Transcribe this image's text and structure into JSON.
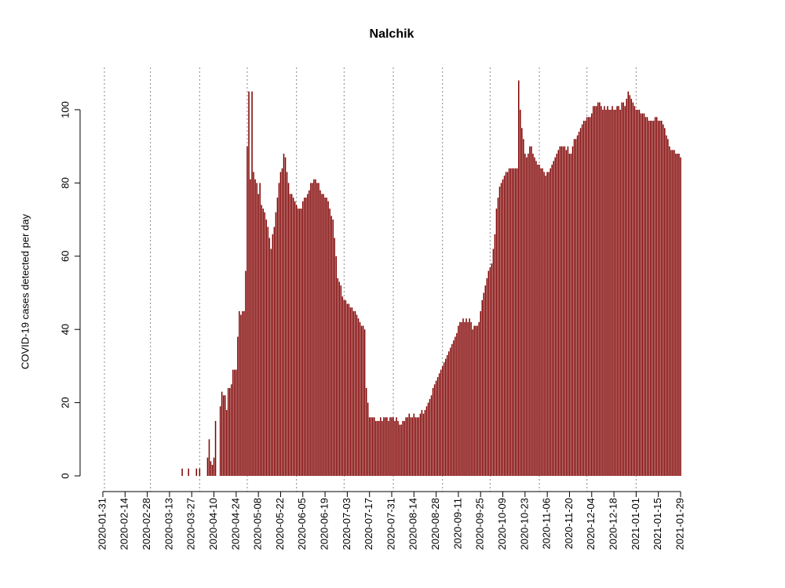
{
  "chart_data": {
    "type": "bar",
    "title": "Nalchik",
    "y_label": "COVID-19 cases detected per day",
    "color": "#800000",
    "x": [
      "2020-01-31",
      "2020-02-01",
      "2020-02-02",
      "2020-02-03",
      "2020-02-04",
      "2020-02-05",
      "2020-02-06",
      "2020-02-07",
      "2020-02-08",
      "2020-02-09",
      "2020-02-10",
      "2020-02-11",
      "2020-02-12",
      "2020-02-13",
      "2020-02-14",
      "2020-02-15",
      "2020-02-16",
      "2020-02-17",
      "2020-02-18",
      "2020-02-19",
      "2020-02-20",
      "2020-02-21",
      "2020-02-22",
      "2020-02-23",
      "2020-02-24",
      "2020-02-25",
      "2020-02-26",
      "2020-02-27",
      "2020-02-28",
      "2020-02-29",
      "2020-03-01",
      "2020-03-02",
      "2020-03-03",
      "2020-03-04",
      "2020-03-05",
      "2020-03-06",
      "2020-03-07",
      "2020-03-08",
      "2020-03-09",
      "2020-03-10",
      "2020-03-11",
      "2020-03-12",
      "2020-03-13",
      "2020-03-14",
      "2020-03-15",
      "2020-03-16",
      "2020-03-17",
      "2020-03-18",
      "2020-03-19",
      "2020-03-20",
      "2020-03-21",
      "2020-03-22",
      "2020-03-23",
      "2020-03-24",
      "2020-03-25",
      "2020-03-26",
      "2020-03-27",
      "2020-03-28",
      "2020-03-29",
      "2020-03-30",
      "2020-03-31",
      "2020-04-01",
      "2020-04-02",
      "2020-04-03",
      "2020-04-04",
      "2020-04-05",
      "2020-04-06",
      "2020-04-07",
      "2020-04-08",
      "2020-04-09",
      "2020-04-10",
      "2020-04-11",
      "2020-04-12",
      "2020-04-13",
      "2020-04-14",
      "2020-04-15",
      "2020-04-16",
      "2020-04-17",
      "2020-04-18",
      "2020-04-19",
      "2020-04-20",
      "2020-04-21",
      "2020-04-22",
      "2020-04-23",
      "2020-04-24",
      "2020-04-25",
      "2020-04-26",
      "2020-04-27",
      "2020-04-28",
      "2020-04-29",
      "2020-04-30",
      "2020-05-01",
      "2020-05-02",
      "2020-05-03",
      "2020-05-04",
      "2020-05-05",
      "2020-05-06",
      "2020-05-07",
      "2020-05-08",
      "2020-05-09",
      "2020-05-10",
      "2020-05-11",
      "2020-05-12",
      "2020-05-13",
      "2020-05-14",
      "2020-05-15",
      "2020-05-16",
      "2020-05-17",
      "2020-05-18",
      "2020-05-19",
      "2020-05-20",
      "2020-05-21",
      "2020-05-22",
      "2020-05-23",
      "2020-05-24",
      "2020-05-25",
      "2020-05-26",
      "2020-05-27",
      "2020-05-28",
      "2020-05-29",
      "2020-05-30",
      "2020-05-31",
      "2020-06-01",
      "2020-06-02",
      "2020-06-03",
      "2020-06-04",
      "2020-06-05",
      "2020-06-06",
      "2020-06-07",
      "2020-06-08",
      "2020-06-09",
      "2020-06-10",
      "2020-06-11",
      "2020-06-12",
      "2020-06-13",
      "2020-06-14",
      "2020-06-15",
      "2020-06-16",
      "2020-06-17",
      "2020-06-18",
      "2020-06-19",
      "2020-06-20",
      "2020-06-21",
      "2020-06-22",
      "2020-06-23",
      "2020-06-24",
      "2020-06-25",
      "2020-06-26",
      "2020-06-27",
      "2020-06-28",
      "2020-06-29",
      "2020-06-30",
      "2020-07-01",
      "2020-07-02",
      "2020-07-03",
      "2020-07-04",
      "2020-07-05",
      "2020-07-06",
      "2020-07-07",
      "2020-07-08",
      "2020-07-09",
      "2020-07-10",
      "2020-07-11",
      "2020-07-12",
      "2020-07-13",
      "2020-07-14",
      "2020-07-15",
      "2020-07-16",
      "2020-07-17",
      "2020-07-18",
      "2020-07-19",
      "2020-07-20",
      "2020-07-21",
      "2020-07-22",
      "2020-07-23",
      "2020-07-24",
      "2020-07-25",
      "2020-07-26",
      "2020-07-27",
      "2020-07-28",
      "2020-07-29",
      "2020-07-30",
      "2020-07-31",
      "2020-08-01",
      "2020-08-02",
      "2020-08-03",
      "2020-08-04",
      "2020-08-05",
      "2020-08-06",
      "2020-08-07",
      "2020-08-08",
      "2020-08-09",
      "2020-08-10",
      "2020-08-11",
      "2020-08-12",
      "2020-08-13",
      "2020-08-14",
      "2020-08-15",
      "2020-08-16",
      "2020-08-17",
      "2020-08-18",
      "2020-08-19",
      "2020-08-20",
      "2020-08-21",
      "2020-08-22",
      "2020-08-23",
      "2020-08-24",
      "2020-08-25",
      "2020-08-26",
      "2020-08-27",
      "2020-08-28",
      "2020-08-29",
      "2020-08-30",
      "2020-08-31",
      "2020-09-01",
      "2020-09-02",
      "2020-09-03",
      "2020-09-04",
      "2020-09-05",
      "2020-09-06",
      "2020-09-07",
      "2020-09-08",
      "2020-09-09",
      "2020-09-10",
      "2020-09-11",
      "2020-09-12",
      "2020-09-13",
      "2020-09-14",
      "2020-09-15",
      "2020-09-16",
      "2020-09-17",
      "2020-09-18",
      "2020-09-19",
      "2020-09-20",
      "2020-09-21",
      "2020-09-22",
      "2020-09-23",
      "2020-09-24",
      "2020-09-25",
      "2020-09-26",
      "2020-09-27",
      "2020-09-28",
      "2020-09-29",
      "2020-09-30",
      "2020-10-01",
      "2020-10-02",
      "2020-10-03",
      "2020-10-04",
      "2020-10-05",
      "2020-10-06",
      "2020-10-07",
      "2020-10-08",
      "2020-10-09",
      "2020-10-10",
      "2020-10-11",
      "2020-10-12",
      "2020-10-13",
      "2020-10-14",
      "2020-10-15",
      "2020-10-16",
      "2020-10-17",
      "2020-10-18",
      "2020-10-19",
      "2020-10-20",
      "2020-10-21",
      "2020-10-22",
      "2020-10-23",
      "2020-10-24",
      "2020-10-25",
      "2020-10-26",
      "2020-10-27",
      "2020-10-28",
      "2020-10-29",
      "2020-10-30",
      "2020-10-31",
      "2020-11-01",
      "2020-11-02",
      "2020-11-03",
      "2020-11-04",
      "2020-11-05",
      "2020-11-06",
      "2020-11-07",
      "2020-11-08",
      "2020-11-09",
      "2020-11-10",
      "2020-11-11",
      "2020-11-12",
      "2020-11-13",
      "2020-11-14",
      "2020-11-15",
      "2020-11-16",
      "2020-11-17",
      "2020-11-18",
      "2020-11-19",
      "2020-11-20",
      "2020-11-21",
      "2020-11-22",
      "2020-11-23",
      "2020-11-24",
      "2020-11-25",
      "2020-11-26",
      "2020-11-27",
      "2020-11-28",
      "2020-11-29",
      "2020-11-30",
      "2020-12-01",
      "2020-12-02",
      "2020-12-03",
      "2020-12-04",
      "2020-12-05",
      "2020-12-06",
      "2020-12-07",
      "2020-12-08",
      "2020-12-09",
      "2020-12-10",
      "2020-12-11",
      "2020-12-12",
      "2020-12-13",
      "2020-12-14",
      "2020-12-15",
      "2020-12-16",
      "2020-12-17",
      "2020-12-18",
      "2020-12-19",
      "2020-12-20",
      "2020-12-21",
      "2020-12-22",
      "2020-12-23",
      "2020-12-24",
      "2020-12-25",
      "2020-12-26",
      "2020-12-27",
      "2020-12-28",
      "2020-12-29",
      "2020-12-30",
      "2020-12-31",
      "2021-01-01",
      "2021-01-02",
      "2021-01-03",
      "2021-01-04",
      "2021-01-05",
      "2021-01-06",
      "2021-01-07",
      "2021-01-08",
      "2021-01-09",
      "2021-01-10",
      "2021-01-11",
      "2021-01-12",
      "2021-01-13",
      "2021-01-14",
      "2021-01-15",
      "2021-01-16",
      "2021-01-17",
      "2021-01-18",
      "2021-01-19",
      "2021-01-20",
      "2021-01-21",
      "2021-01-22",
      "2021-01-23",
      "2021-01-24",
      "2021-01-25",
      "2021-01-26",
      "2021-01-27",
      "2021-01-28",
      "2021-01-29"
    ],
    "values": [
      0,
      0,
      0,
      0,
      0,
      0,
      0,
      0,
      0,
      0,
      0,
      0,
      0,
      0,
      0,
      0,
      0,
      0,
      0,
      0,
      0,
      0,
      0,
      0,
      0,
      0,
      0,
      0,
      0,
      0,
      0,
      0,
      0,
      0,
      0,
      0,
      0,
      0,
      0,
      0,
      0,
      0,
      0,
      0,
      0,
      0,
      0,
      0,
      0,
      0,
      2,
      0,
      0,
      0,
      2,
      0,
      0,
      0,
      0,
      2,
      0,
      2,
      0,
      0,
      0,
      0,
      5,
      10,
      4,
      3,
      5,
      15,
      0,
      0,
      19,
      23,
      22,
      22,
      18,
      24,
      24,
      25,
      29,
      29,
      29,
      38,
      45,
      44,
      45,
      45,
      56,
      90,
      105,
      81,
      105,
      83,
      81,
      80,
      77,
      80,
      74,
      73,
      72,
      70,
      68,
      65,
      62,
      66,
      68,
      72,
      76,
      80,
      83,
      84,
      88,
      87,
      83,
      80,
      77,
      77,
      76,
      75,
      74,
      73,
      73,
      73,
      75,
      76,
      76,
      77,
      78,
      80,
      80,
      81,
      81,
      80,
      80,
      78,
      77,
      77,
      76,
      76,
      75,
      73,
      71,
      70,
      65,
      60,
      54,
      53,
      52,
      49,
      48,
      48,
      47,
      47,
      46,
      46,
      45,
      45,
      44,
      43,
      42,
      41,
      41,
      40,
      24,
      20,
      16,
      16,
      16,
      16,
      15,
      15,
      15,
      16,
      15,
      16,
      16,
      16,
      15,
      16,
      16,
      16,
      15,
      16,
      15,
      14,
      14,
      15,
      15,
      16,
      16,
      17,
      16,
      16,
      17,
      16,
      16,
      16,
      17,
      18,
      17,
      18,
      19,
      20,
      21,
      22,
      24,
      25,
      26,
      27,
      28,
      29,
      30,
      31,
      32,
      33,
      34,
      35,
      36,
      37,
      38,
      39,
      41,
      42,
      42,
      43,
      42,
      43,
      42,
      43,
      42,
      40,
      41,
      41,
      41,
      42,
      45,
      48,
      50,
      52,
      54,
      56,
      57,
      58,
      62,
      66,
      73,
      76,
      79,
      80,
      81,
      82,
      83,
      83,
      84,
      84,
      84,
      84,
      84,
      84,
      108,
      100,
      95,
      92,
      88,
      87,
      88,
      90,
      90,
      88,
      87,
      86,
      85,
      85,
      84,
      84,
      83,
      82,
      83,
      83,
      84,
      85,
      86,
      87,
      88,
      89,
      90,
      90,
      90,
      90,
      89,
      90,
      88,
      88,
      90,
      92,
      92,
      93,
      94,
      95,
      96,
      97,
      97,
      98,
      98,
      98,
      99,
      101,
      101,
      101,
      102,
      102,
      101,
      100,
      101,
      100,
      101,
      100,
      100,
      101,
      100,
      100,
      101,
      101,
      100,
      102,
      102,
      101,
      103,
      105,
      104,
      103,
      102,
      101,
      100,
      100,
      100,
      99,
      99,
      99,
      98,
      98,
      97,
      97,
      97,
      97,
      98,
      98,
      97,
      97,
      97,
      96,
      95,
      93,
      92,
      90,
      89,
      89,
      89,
      88,
      88,
      88,
      87
    ],
    "xticks": [
      "2020-01-31",
      "2020-02-14",
      "2020-02-28",
      "2020-03-13",
      "2020-03-27",
      "2020-04-10",
      "2020-04-24",
      "2020-05-08",
      "2020-05-22",
      "2020-06-05",
      "2020-06-19",
      "2020-07-03",
      "2020-07-17",
      "2020-07-31",
      "2020-08-14",
      "2020-08-28",
      "2020-09-11",
      "2020-09-25",
      "2020-10-09",
      "2020-10-23",
      "2020-11-06",
      "2020-11-20",
      "2020-12-04",
      "2020-12-18",
      "2021-01-01",
      "2021-01-15",
      "2021-01-29"
    ],
    "ylim": [
      0,
      108
    ],
    "yticks": [
      0,
      20,
      40,
      60,
      80,
      100
    ]
  }
}
